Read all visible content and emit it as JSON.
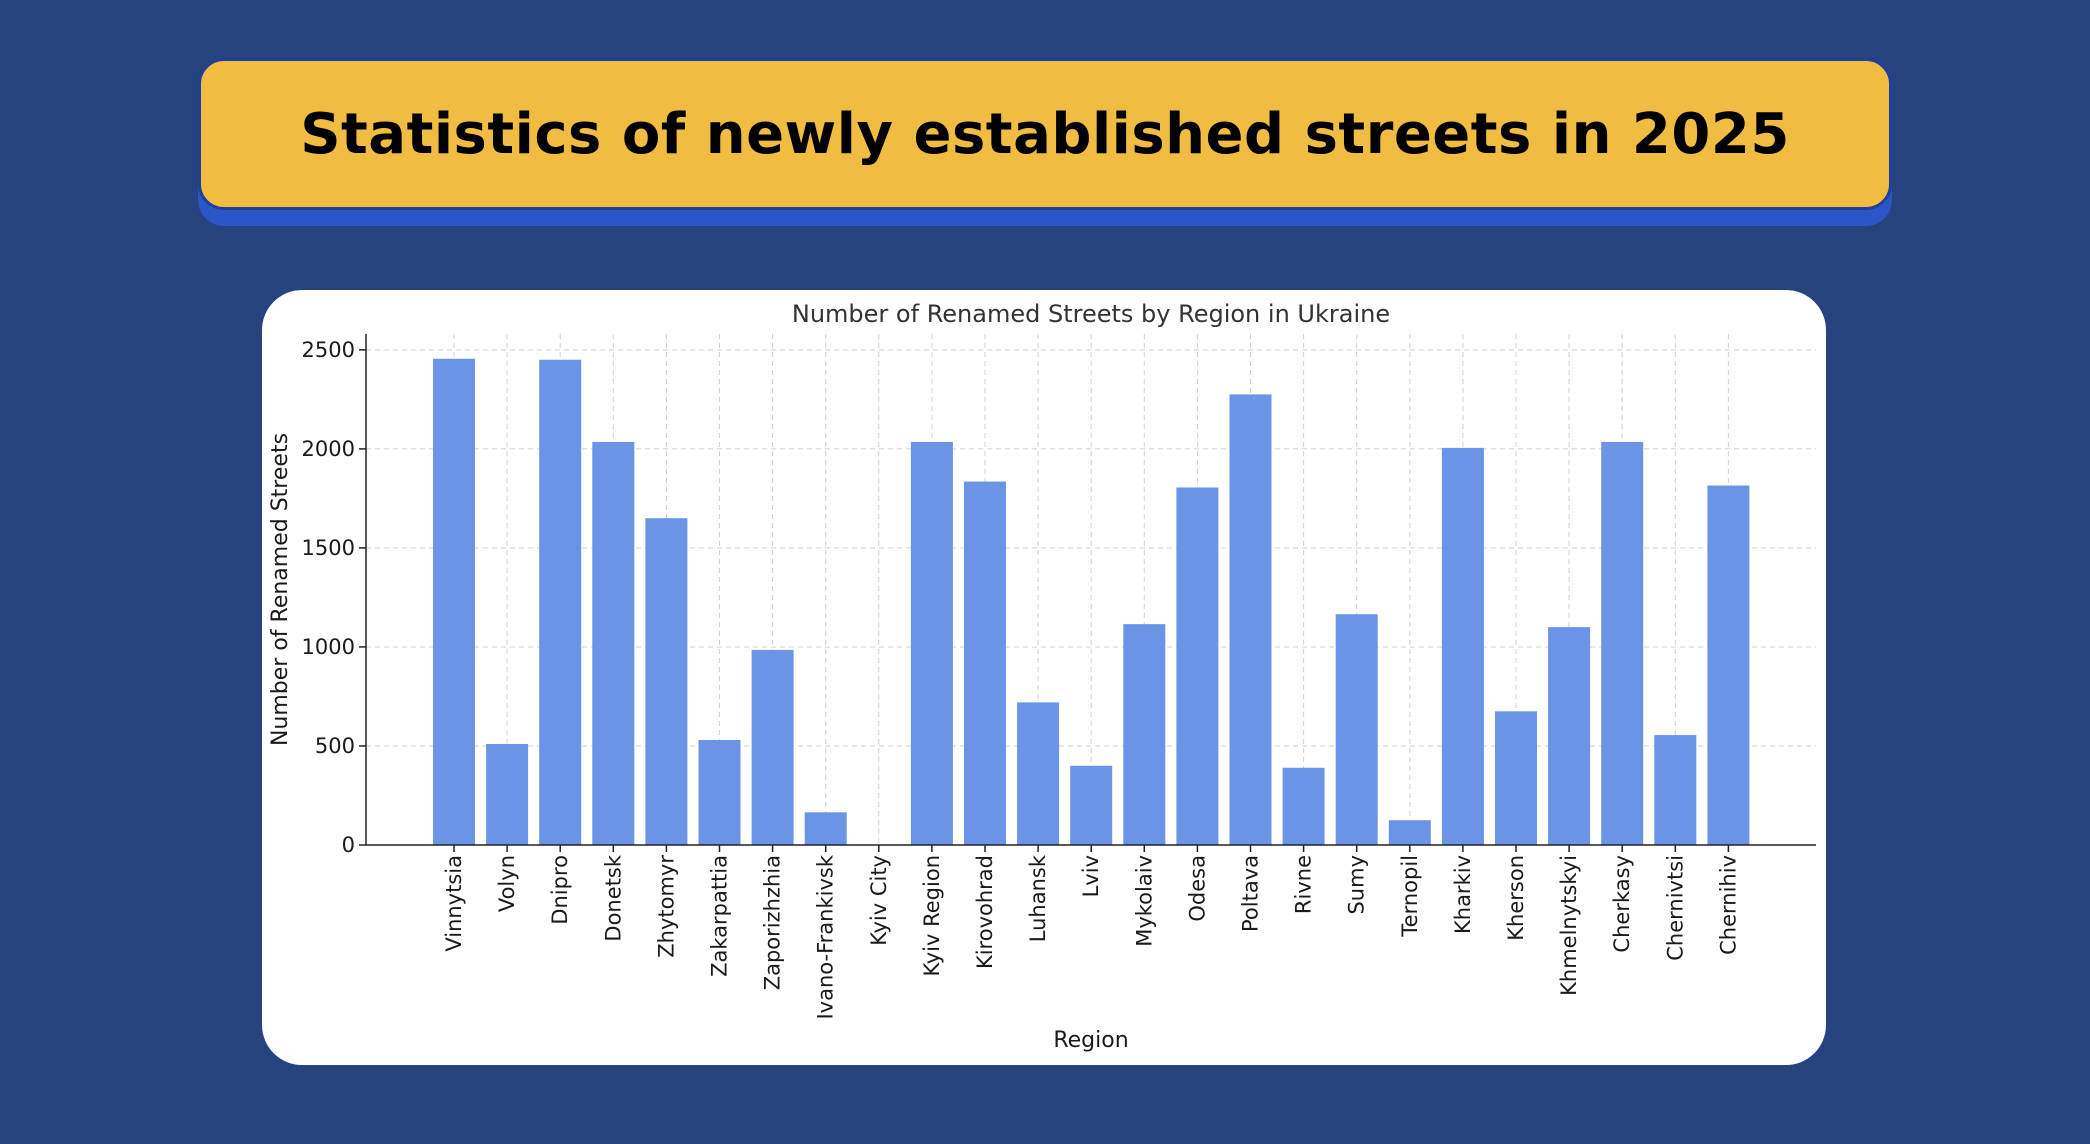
{
  "header": {
    "title": "Statistics of newly established streets in 2025"
  },
  "colors": {
    "background": "#26437f",
    "banner": "#f0bc42",
    "bar": "#6b93e6",
    "card": "#ffffff"
  },
  "chart_data": {
    "type": "bar",
    "title": "Number of Renamed Streets by Region in Ukraine",
    "xlabel": "Region",
    "ylabel": "Number of Renamed Streets",
    "ylim": [
      0,
      2580
    ],
    "yticks": [
      0,
      500,
      1000,
      1500,
      2000,
      2500
    ],
    "grid": true,
    "categories": [
      "Vinnytsia",
      "Volyn",
      "Dnipro",
      "Donetsk",
      "Zhytomyr",
      "Zakarpattia",
      "Zaporizhzhia",
      "Ivano-Frankivsk",
      "Kyiv City",
      "Kyiv Region",
      "Kirovohrad",
      "Luhansk",
      "Lviv",
      "Mykolaiv",
      "Odesa",
      "Poltava",
      "Rivne",
      "Sumy",
      "Ternopil",
      "Kharkiv",
      "Kherson",
      "Khmelnytskyi",
      "Cherkasy",
      "Chernivtsi",
      "Chernihiv"
    ],
    "values": [
      2455,
      510,
      2450,
      2035,
      1650,
      530,
      985,
      165,
      0,
      2035,
      1835,
      720,
      400,
      1115,
      1805,
      2275,
      390,
      1165,
      125,
      2005,
      675,
      1100,
      2035,
      555,
      1815
    ]
  }
}
